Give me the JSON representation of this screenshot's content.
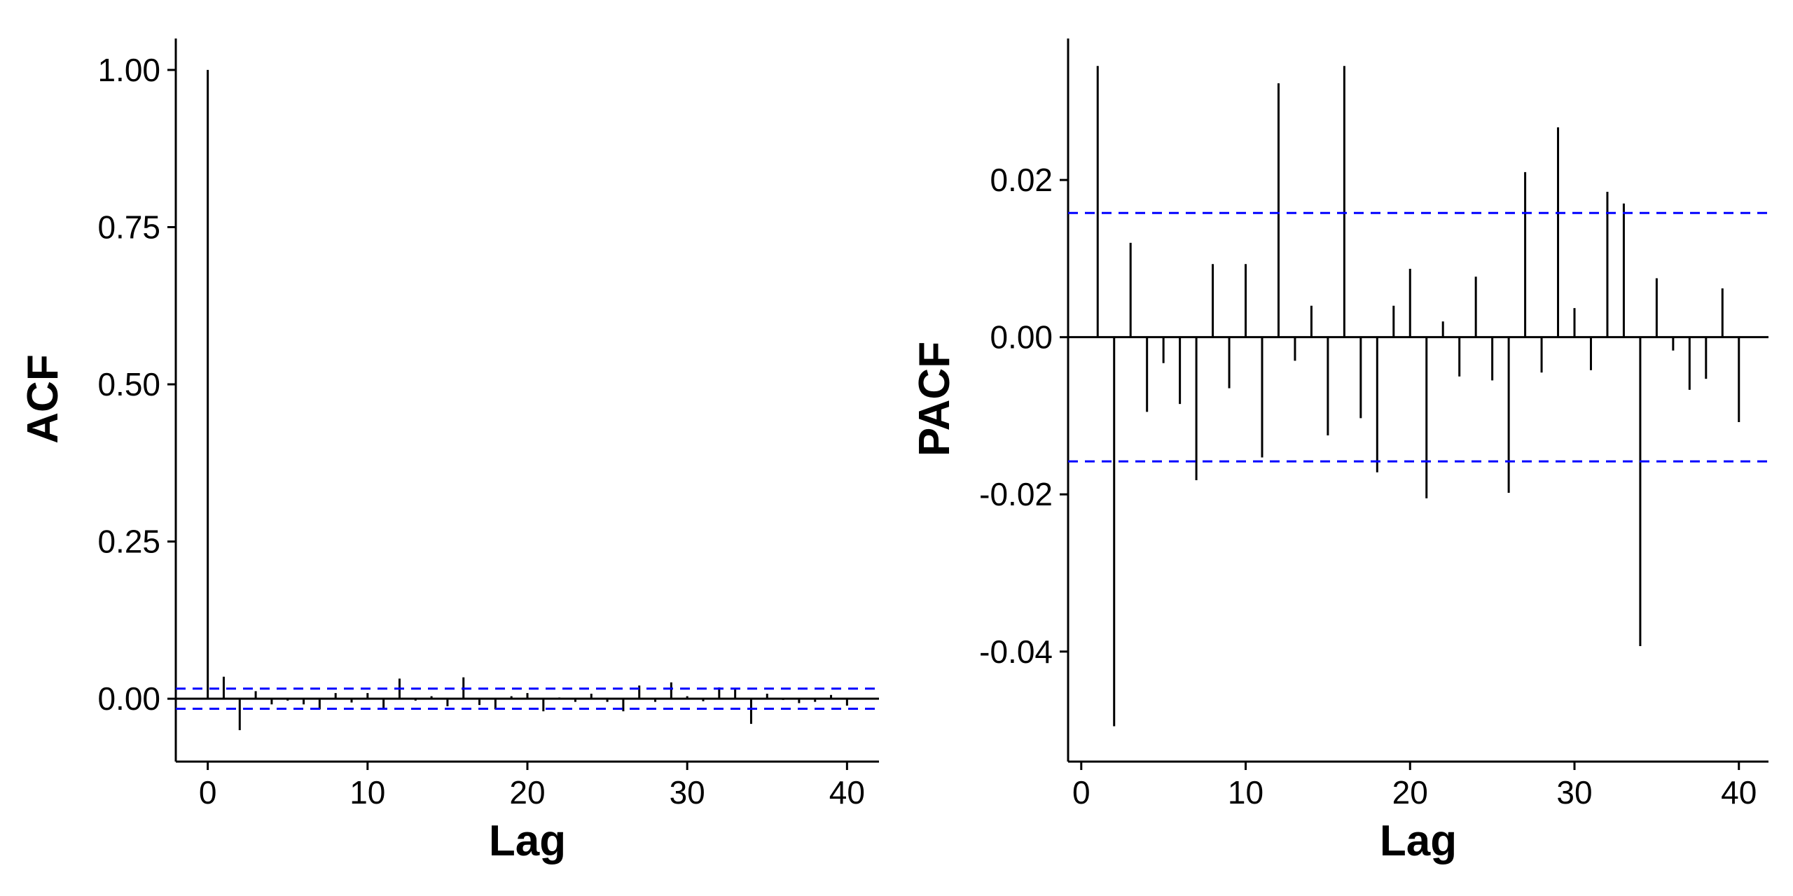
{
  "chart_data": [
    {
      "type": "bar",
      "xlabel": "Lag",
      "ylabel": "ACF",
      "xlim": [
        -2,
        42
      ],
      "ylim": [
        -0.1,
        1.05
      ],
      "x_ticks": [
        0,
        10,
        20,
        30,
        40
      ],
      "x_tick_labels": [
        "0",
        "10",
        "20",
        "30",
        "40"
      ],
      "y_ticks": [
        0.0,
        0.25,
        0.5,
        0.75,
        1.0
      ],
      "y_tick_labels": [
        "0.00",
        "0.25",
        "0.50",
        "0.75",
        "1.00"
      ],
      "confidence_bound": 0.016,
      "grid": false,
      "colors": {
        "bars": "#000000",
        "bounds": "#0000ff",
        "axis": "#000000"
      },
      "x": [
        0,
        1,
        2,
        3,
        4,
        5,
        6,
        7,
        8,
        9,
        10,
        11,
        12,
        13,
        14,
        15,
        16,
        17,
        18,
        19,
        20,
        21,
        22,
        23,
        24,
        25,
        26,
        27,
        28,
        29,
        30,
        31,
        32,
        33,
        34,
        35,
        36,
        37,
        38,
        39,
        40
      ],
      "values": [
        1.0,
        0.035,
        -0.05,
        0.012,
        -0.009,
        -0.003,
        -0.009,
        -0.017,
        0.009,
        -0.006,
        0.009,
        -0.015,
        0.032,
        -0.003,
        0.004,
        -0.012,
        0.034,
        -0.01,
        -0.017,
        0.004,
        0.009,
        -0.02,
        0.002,
        -0.005,
        0.008,
        -0.005,
        -0.02,
        0.021,
        -0.005,
        0.026,
        0.004,
        -0.004,
        0.018,
        0.016,
        -0.04,
        0.008,
        -0.002,
        -0.007,
        -0.005,
        0.006,
        -0.011
      ]
    },
    {
      "type": "bar",
      "xlabel": "Lag",
      "ylabel": "PACF",
      "xlim": [
        -0.8,
        41.8
      ],
      "ylim": [
        -0.054,
        0.038
      ],
      "x_ticks": [
        0,
        10,
        20,
        30,
        40
      ],
      "x_tick_labels": [
        "0",
        "10",
        "20",
        "30",
        "40"
      ],
      "y_ticks": [
        -0.04,
        -0.02,
        0.0,
        0.02
      ],
      "y_tick_labels": [
        "-0.04",
        "-0.02",
        "0.00",
        "0.02"
      ],
      "confidence_bound": 0.0158,
      "grid": false,
      "colors": {
        "bars": "#000000",
        "bounds": "#0000ff",
        "axis": "#000000"
      },
      "x": [
        1,
        2,
        3,
        4,
        5,
        6,
        7,
        8,
        9,
        10,
        11,
        12,
        13,
        14,
        15,
        16,
        17,
        18,
        19,
        20,
        21,
        22,
        23,
        24,
        25,
        26,
        27,
        28,
        29,
        30,
        31,
        32,
        33,
        34,
        35,
        36,
        37,
        38,
        39,
        40
      ],
      "values": [
        0.0345,
        -0.0495,
        0.012,
        -0.0095,
        -0.0033,
        -0.0085,
        -0.0182,
        0.0093,
        -0.0065,
        0.0093,
        -0.0153,
        0.0323,
        -0.003,
        0.004,
        -0.0125,
        0.0345,
        -0.0103,
        -0.0172,
        0.004,
        0.0087,
        -0.0205,
        0.002,
        -0.005,
        0.0077,
        -0.0055,
        -0.0198,
        0.021,
        -0.0045,
        0.0267,
        0.0037,
        -0.0042,
        0.0185,
        0.017,
        -0.0393,
        0.0075,
        -0.0017,
        -0.0067,
        -0.0053,
        0.0062,
        -0.0108
      ]
    }
  ]
}
